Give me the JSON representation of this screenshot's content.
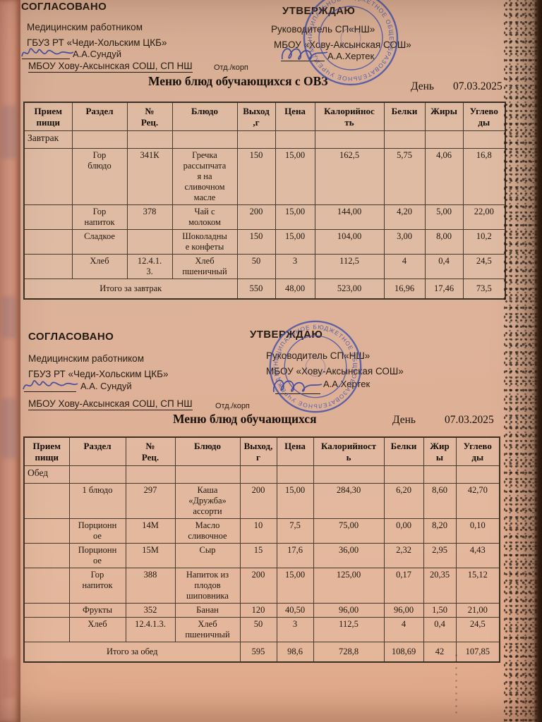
{
  "doc": {
    "date_label": "День",
    "date_value": "07.03.2025",
    "org_underline": "МБОУ Хову-Аксынская СОШ, СП НШ",
    "org_suffix": "Отд./корп"
  },
  "block1": {
    "agreed_title": "СОГЛАСОВАНО",
    "approved_title": "УТВЕРЖДАЮ",
    "agreed_line1": "Медицинским работником",
    "agreed_line2": "ГБУЗ РТ «Чеди-Хольским ЦКБ»",
    "agreed_signer": "А.А.Сундуй",
    "approved_line1": "Руководитель СП«НШ»",
    "approved_line2": "МБОУ «Хову-Аксынская СОШ»",
    "approved_signer": "А.А.Хертек",
    "menu_title": "Меню блюд обучающихся с ОВЗ"
  },
  "block2": {
    "agreed_title": "СОГЛАСОВАНО",
    "approved_title": "УТВЕРЖДАЮ",
    "agreed_line1": "Медицинским работником",
    "agreed_line2": "ГБУЗ РТ «Чеди-Хольским ЦКБ»",
    "agreed_signer": "А.А. Сундуй",
    "approved_line1": "Руководитель СП«НШ»",
    "approved_line2": "МБОУ «Хову-Аксынская СОШ»",
    "approved_signer": "А.А.Хертек",
    "menu_title": "Меню блюд обучающихся"
  },
  "stamp": {
    "ring_text": "МУНИЦИПАЛЬНОЕ БЮДЖЕТНОЕ ОБЩЕОБРАЗОВАТЕЛЬНОЕ УЧРЕЖДЕНИЕ • ЧЕДИ-ХОЛЬСКИЙ КОЖУУН •"
  },
  "tables": [
    {
      "headers": [
        "Прием\nпищи",
        "Раздел",
        "№\nРец.",
        "Блюдо",
        "Выход\n,г",
        "Цена",
        "Калорийнос\nть",
        "Белки",
        "Жиры",
        "Углево\nды"
      ],
      "widths": [
        68,
        78,
        64,
        92,
        54,
        56,
        98,
        58,
        54,
        60
      ],
      "rows": [
        [
          "Завтрак",
          "",
          "",
          "",
          "",
          "",
          "",
          "",
          "",
          ""
        ],
        [
          "",
          "Гор\nблюдо",
          "341К",
          "Гречка\nрассыпчата\nя на\nсливочном\nмасле",
          "150",
          "15,00",
          "162,5",
          "5,75",
          "4,06",
          "16,8"
        ],
        [
          "",
          "Гор\nнапиток",
          "378",
          "Чай с\nмолоком",
          "200",
          "15,00",
          "144,00",
          "4,20",
          "5,00",
          "22,00"
        ],
        [
          "",
          "Сладкое",
          "",
          "Шоколадны\nе конфеты",
          "150",
          "15,00",
          "104,00",
          "3,00",
          "8,00",
          "10,2"
        ],
        [
          "",
          "Хлеб",
          "12.4.1.\n3.",
          "Хлеб\nпшеничный",
          "50",
          "3",
          "112,5",
          "4",
          "0,4",
          "24,5"
        ]
      ],
      "total": {
        "label": "Итого за завтрак",
        "colspan": 4,
        "values": [
          "550",
          "48,00",
          "523,00",
          "16,96",
          "17,46",
          "73,5"
        ]
      }
    },
    {
      "headers": [
        "Прием\nпищи",
        "Раздел",
        "№\nРец.",
        "Блюдо",
        "Выход,г",
        "Цена",
        "Калорийност\nь",
        "Белки",
        "Жир\nы",
        "Углево\nды"
      ],
      "widths": [
        64,
        80,
        70,
        92,
        52,
        52,
        100,
        56,
        46,
        62
      ],
      "rows": [
        [
          "Обед",
          "",
          "",
          "",
          "",
          "",
          "",
          "",
          "",
          ""
        ],
        [
          "",
          "1 блюдо",
          "297",
          "Каша\n«Дружба»\nассорти",
          "200",
          "15,00",
          "284,30",
          "6,20",
          "8,60",
          "42,70"
        ],
        [
          "",
          "Порционн\nое",
          "14М",
          "Масло\nсливочное",
          "10",
          "7,5",
          "75,00",
          "0,00",
          "8,20",
          "0,10"
        ],
        [
          "",
          "Порционн\nое",
          "15М",
          "Сыр",
          "15",
          "17,6",
          "36,00",
          "2,32",
          "2,95",
          "4,43"
        ],
        [
          "",
          "Гор\nнапиток",
          "388",
          "Напиток из\nплодов\nшиповника",
          "200",
          "15,00",
          "125,00",
          "0,17",
          "20,35",
          "15,12"
        ],
        [
          "",
          "Фрукты",
          "352",
          "Банан",
          "120",
          "40,50",
          "96,00",
          "96,00",
          "1,50",
          "21,00"
        ],
        [
          "",
          "Хлеб",
          "12.4.1.3.",
          "Хлеб\nпшеничный",
          "50",
          "3",
          "112,5",
          "4",
          "0,4",
          "24,5"
        ]
      ],
      "total": {
        "label": "Итого за обед",
        "colspan": 4,
        "values": [
          "595",
          "98,6",
          "728,8",
          "108,69",
          "42",
          "107,85"
        ]
      }
    }
  ]
}
